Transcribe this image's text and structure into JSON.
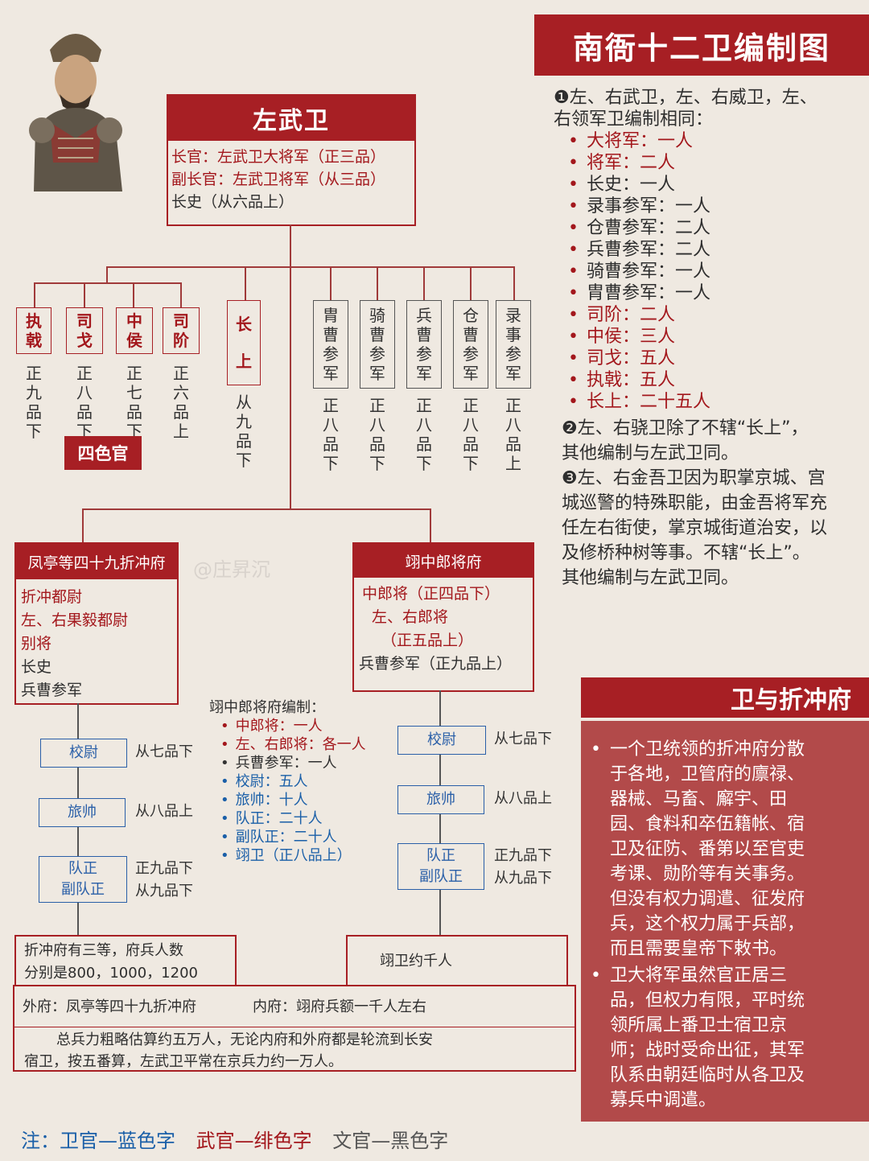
{
  "title": "南衙十二卫编制图",
  "main_box": {
    "title": "左武卫",
    "lines": [
      "长官：左武卫大将军（正三品）",
      "副长官：左武卫将军（从三品）",
      "长史（从六品上）"
    ]
  },
  "left_officers": [
    {
      "name_chars": [
        "执",
        "戟"
      ],
      "rank_chars": [
        "正",
        "九",
        "品",
        "下"
      ]
    },
    {
      "name_chars": [
        "司",
        "戈"
      ],
      "rank_chars": [
        "正",
        "八",
        "品",
        "下"
      ]
    },
    {
      "name_chars": [
        "中",
        "侯"
      ],
      "rank_chars": [
        "正",
        "七",
        "品",
        "下"
      ]
    },
    {
      "name_chars": [
        "司",
        "阶"
      ],
      "rank_chars": [
        "正",
        "六",
        "品",
        "上"
      ]
    }
  ],
  "changshang": {
    "name_chars": [
      "长",
      "上"
    ],
    "rank_chars": [
      "从",
      "九",
      "品",
      "下"
    ]
  },
  "right_officers": [
    {
      "name_chars": [
        "胄",
        "曹",
        "参",
        "军"
      ],
      "rank_chars": [
        "正",
        "八",
        "品",
        "下"
      ]
    },
    {
      "name_chars": [
        "骑",
        "曹",
        "参",
        "军"
      ],
      "rank_chars": [
        "正",
        "八",
        "品",
        "下"
      ]
    },
    {
      "name_chars": [
        "兵",
        "曹",
        "参",
        "军"
      ],
      "rank_chars": [
        "正",
        "八",
        "品",
        "下"
      ]
    },
    {
      "name_chars": [
        "仓",
        "曹",
        "参",
        "军"
      ],
      "rank_chars": [
        "正",
        "八",
        "品",
        "下"
      ]
    },
    {
      "name_chars": [
        "录",
        "事",
        "参",
        "军"
      ],
      "rank_chars": [
        "正",
        "八",
        "品",
        "上"
      ]
    }
  ],
  "four_color_label": "四色官",
  "notes": {
    "n1_line1": "❶左、右武卫，左、右威卫，左、",
    "n1_line2": "右领军卫编制相同：",
    "n1_items": [
      {
        "text": "大将军：一人",
        "color": "red"
      },
      {
        "text": "将军：二人",
        "color": "red"
      },
      {
        "text": "长史：一人",
        "color": "black"
      },
      {
        "text": "录事参军：一人",
        "color": "black"
      },
      {
        "text": "仓曹参军：二人",
        "color": "black"
      },
      {
        "text": "兵曹参军：二人",
        "color": "black"
      },
      {
        "text": "骑曹参军：一人",
        "color": "black"
      },
      {
        "text": "胄曹参军：一人",
        "color": "black"
      },
      {
        "text": "司阶：二人",
        "color": "red"
      },
      {
        "text": "中侯：三人",
        "color": "red"
      },
      {
        "text": "司戈：五人",
        "color": "red"
      },
      {
        "text": "执戟：五人",
        "color": "red"
      },
      {
        "text": "长上：二十五人",
        "color": "red"
      }
    ],
    "n2_lines": [
      "❷左、右骁卫除了不辖“长上”，",
      "其他编制与左武卫同。"
    ],
    "n3_lines": [
      "❸左、右金吾卫因为职掌京城、宫",
      "城巡警的特殊职能，由金吾将军充",
      "任左右街使，掌京城街道治安，以",
      "及修桥种树等事。不辖“长上”。",
      "其他编制与左武卫同。"
    ]
  },
  "zhechong_box": {
    "title": "凤亭等四十九折冲府",
    "lines": [
      {
        "text": "折冲都尉",
        "color": "red"
      },
      {
        "text": "左、右果毅都尉",
        "color": "red"
      },
      {
        "text": "别将",
        "color": "red"
      },
      {
        "text": "长史",
        "color": "black"
      },
      {
        "text": "兵曹参军",
        "color": "black"
      }
    ]
  },
  "yi_box": {
    "title": "翊中郎将府",
    "lines": [
      {
        "text": "中郎将（正四品下）",
        "color": "red"
      },
      {
        "text": "左、右郎将",
        "color": "red"
      },
      {
        "text": "（正五品上）",
        "color": "red"
      },
      {
        "text": "兵曹参军（正九品上）",
        "color": "black"
      }
    ]
  },
  "left_chain": [
    {
      "label": "校尉",
      "rank": "从七品下"
    },
    {
      "label": "旅帅",
      "rank": "从八品上"
    },
    {
      "label": "队正",
      "label2": "副队正",
      "rank": "正九品下",
      "rank2": "从九品下"
    }
  ],
  "right_chain": [
    {
      "label": "校尉",
      "rank": "从七品下"
    },
    {
      "label": "旅帅",
      "rank": "从八品上"
    },
    {
      "label": "队正",
      "label2": "副队正",
      "rank": "正九品下",
      "rank2": "从九品下"
    }
  ],
  "yi_list": {
    "title": "翊中郎将府编制：",
    "items": [
      {
        "text": "中郎将：一人",
        "color": "r"
      },
      {
        "text": "左、右郎将：各一人",
        "color": "r"
      },
      {
        "text": "兵曹参军：一人",
        "color": "k"
      },
      {
        "text": "校尉：五人",
        "color": "b"
      },
      {
        "text": "旅帅：十人",
        "color": "b"
      },
      {
        "text": "队正：二十人",
        "color": "b"
      },
      {
        "text": "副队正：二十人",
        "color": "b"
      },
      {
        "text": "翊卫（正八品上）",
        "color": "b"
      }
    ]
  },
  "bottom": {
    "fubing_l1": "折冲府有三等，府兵人数",
    "fubing_l2": "分别是800，1000，1200",
    "yiwei": "翊卫约千人",
    "waifu": "外府：凤亭等四十九折冲府",
    "neifu": "内府：翊府兵额一千人左右",
    "summary_l1": "总兵力粗略估算约五万人，无论内府和外府都是轮流到长安",
    "summary_l2": "宿卫，按五番算，左武卫平常在京兵力约一万人。"
  },
  "section2": {
    "title": "卫与折冲府",
    "bullets": [
      [
        "一个卫统领的折冲府分散",
        "于各地，卫管府的廪禄、",
        "器械、马畜、廨宇、田",
        "园、食料和卒伍籍帐、宿",
        "卫及征防、番第以至官吏",
        "考课、勋阶等有关事务。",
        "但没有权力调遣、征发府",
        "兵，这个权力属于兵部，",
        "而且需要皇帝下敕书。"
      ],
      [
        "卫大将军虽然官正居三",
        "品，但权力有限，平时统",
        "领所属上番卫士宿卫京",
        "师；战时受命出征，其军",
        "队系由朝廷临时从各卫及",
        "募兵中调遣。"
      ]
    ]
  },
  "legend": {
    "prefix": "注：",
    "blue": "卫官—蓝色字",
    "red": "武官—绯色字",
    "black": "文官—黑色字"
  },
  "watermark": "@庄昇沉",
  "colors": {
    "accent": "#a71f24",
    "blue": "#1a5fa8",
    "panel": "#b24a4a",
    "bg": "#efe9e1"
  }
}
